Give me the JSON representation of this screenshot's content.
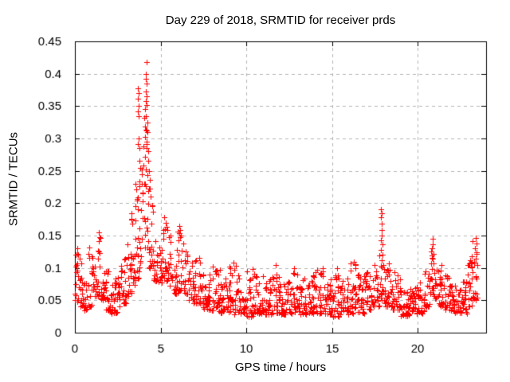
{
  "chart_data": {
    "type": "scatter",
    "title": "Day 229 of 2018, SRMTID for receiver prds",
    "xlabel": "GPS time / hours",
    "ylabel": "SRMTID / TECUs",
    "xlim": [
      0,
      24
    ],
    "ylim": [
      0,
      0.45
    ],
    "xticks": [
      0,
      5,
      10,
      15,
      20
    ],
    "xtick_labels": [
      "0",
      "5",
      "10",
      "15",
      "20"
    ],
    "yticks": [
      0,
      0.05,
      0.1,
      0.15,
      0.2,
      0.25,
      0.3,
      0.35,
      0.4,
      0.45
    ],
    "ytick_labels": [
      "0",
      "0.05",
      "0.1",
      "0.15",
      "0.2",
      "0.25",
      "0.3",
      "0.35",
      "0.4",
      "0.45"
    ],
    "grid": true,
    "legend": "none",
    "marker": "plus",
    "marker_color": "#ff0000",
    "grid_color": "#b5b5b5",
    "axis_color": "#000000",
    "background_color": "#ffffff",
    "data_x_end": 23.5,
    "peak_point": [
      4.17,
      0.418
    ],
    "band_segments": [
      [
        0.0,
        0.25,
        16,
        0.045,
        0.125
      ],
      [
        0.25,
        0.5,
        16,
        0.04,
        0.115
      ],
      [
        0.5,
        0.75,
        16,
        0.035,
        0.1
      ],
      [
        0.75,
        1.0,
        16,
        0.04,
        0.135
      ],
      [
        1.0,
        1.25,
        16,
        0.05,
        0.12
      ],
      [
        1.25,
        1.5,
        16,
        0.055,
        0.152
      ],
      [
        1.5,
        1.75,
        16,
        0.05,
        0.13
      ],
      [
        1.75,
        2.0,
        16,
        0.035,
        0.1
      ],
      [
        2.0,
        2.25,
        16,
        0.028,
        0.075
      ],
      [
        2.25,
        2.5,
        16,
        0.03,
        0.09
      ],
      [
        2.5,
        2.75,
        16,
        0.04,
        0.105
      ],
      [
        2.75,
        3.0,
        16,
        0.045,
        0.115
      ],
      [
        3.0,
        3.25,
        16,
        0.055,
        0.15
      ],
      [
        3.25,
        3.5,
        16,
        0.06,
        0.185
      ],
      [
        3.5,
        3.75,
        16,
        0.08,
        0.21
      ],
      [
        3.75,
        4.0,
        16,
        0.1,
        0.27
      ],
      [
        4.0,
        4.3,
        18,
        0.13,
        0.33
      ],
      [
        4.3,
        4.55,
        15,
        0.1,
        0.21
      ],
      [
        4.55,
        4.8,
        15,
        0.08,
        0.145
      ],
      [
        4.8,
        5.1,
        16,
        0.075,
        0.135
      ],
      [
        5.1,
        5.4,
        16,
        0.08,
        0.175
      ],
      [
        5.4,
        5.7,
        16,
        0.07,
        0.15
      ],
      [
        5.7,
        6.0,
        16,
        0.06,
        0.13
      ],
      [
        6.0,
        6.3,
        16,
        0.065,
        0.16
      ],
      [
        6.3,
        6.6,
        16,
        0.06,
        0.14
      ],
      [
        6.6,
        6.9,
        16,
        0.05,
        0.115
      ],
      [
        6.9,
        7.2,
        16,
        0.045,
        0.12
      ],
      [
        7.2,
        7.5,
        16,
        0.04,
        0.1
      ],
      [
        7.5,
        8.0,
        30,
        0.035,
        0.095
      ],
      [
        8.0,
        8.5,
        30,
        0.03,
        0.105
      ],
      [
        8.5,
        9.0,
        30,
        0.03,
        0.085
      ],
      [
        9.0,
        9.5,
        30,
        0.028,
        0.11
      ],
      [
        9.5,
        10.0,
        30,
        0.03,
        0.09
      ],
      [
        10.0,
        10.5,
        30,
        0.025,
        0.105
      ],
      [
        10.5,
        11.0,
        30,
        0.03,
        0.09
      ],
      [
        11.0,
        11.5,
        30,
        0.028,
        0.085
      ],
      [
        11.5,
        12.0,
        30,
        0.03,
        0.105
      ],
      [
        12.0,
        12.5,
        30,
        0.028,
        0.08
      ],
      [
        12.5,
        13.0,
        30,
        0.03,
        0.1
      ],
      [
        13.0,
        13.5,
        30,
        0.028,
        0.085
      ],
      [
        13.5,
        14.0,
        30,
        0.03,
        0.09
      ],
      [
        14.0,
        14.5,
        30,
        0.03,
        0.1
      ],
      [
        14.5,
        15.0,
        30,
        0.028,
        0.09
      ],
      [
        15.0,
        15.5,
        30,
        0.025,
        0.1
      ],
      [
        15.5,
        16.0,
        30,
        0.028,
        0.085
      ],
      [
        16.0,
        16.5,
        30,
        0.03,
        0.11
      ],
      [
        16.5,
        17.0,
        30,
        0.03,
        0.09
      ],
      [
        17.0,
        17.4,
        24,
        0.035,
        0.1
      ],
      [
        17.4,
        17.8,
        24,
        0.04,
        0.12
      ],
      [
        17.8,
        18.1,
        18,
        0.05,
        0.13
      ],
      [
        18.1,
        18.5,
        24,
        0.04,
        0.11
      ],
      [
        18.5,
        19.0,
        30,
        0.035,
        0.095
      ],
      [
        19.0,
        19.5,
        30,
        0.025,
        0.07
      ],
      [
        19.5,
        20.0,
        30,
        0.03,
        0.08
      ],
      [
        20.0,
        20.4,
        24,
        0.03,
        0.085
      ],
      [
        20.4,
        20.75,
        21,
        0.04,
        0.1
      ],
      [
        20.75,
        21.1,
        21,
        0.05,
        0.14
      ],
      [
        21.1,
        21.5,
        24,
        0.04,
        0.105
      ],
      [
        21.5,
        22.0,
        30,
        0.035,
        0.09
      ],
      [
        22.0,
        22.5,
        30,
        0.03,
        0.075
      ],
      [
        22.5,
        22.9,
        24,
        0.03,
        0.08
      ],
      [
        22.9,
        23.2,
        18,
        0.04,
        0.11
      ],
      [
        23.2,
        23.5,
        18,
        0.05,
        0.148
      ]
    ],
    "outlier_points": [
      [
        0.12,
        0.13
      ],
      [
        0.16,
        0.122
      ],
      [
        1.38,
        0.155
      ],
      [
        1.42,
        0.148
      ],
      [
        1.4,
        0.141
      ],
      [
        3.28,
        0.176
      ],
      [
        3.3,
        0.185
      ],
      [
        3.33,
        0.168
      ],
      [
        3.52,
        0.196
      ],
      [
        3.55,
        0.23
      ],
      [
        3.58,
        0.221
      ],
      [
        3.61,
        0.206
      ],
      [
        3.66,
        0.342
      ],
      [
        3.68,
        0.378
      ],
      [
        3.68,
        0.292
      ],
      [
        3.69,
        0.362
      ],
      [
        3.7,
        0.37
      ],
      [
        3.71,
        0.335
      ],
      [
        3.72,
        0.35
      ],
      [
        3.74,
        0.3
      ],
      [
        3.76,
        0.285
      ],
      [
        3.78,
        0.265
      ],
      [
        3.8,
        0.255
      ],
      [
        3.9,
        0.245
      ],
      [
        3.95,
        0.217
      ],
      [
        3.98,
        0.258
      ],
      [
        4.02,
        0.288
      ],
      [
        4.05,
        0.332
      ],
      [
        4.07,
        0.302
      ],
      [
        4.08,
        0.23
      ],
      [
        4.08,
        0.318
      ],
      [
        4.1,
        0.345
      ],
      [
        4.11,
        0.272
      ],
      [
        4.12,
        0.358
      ],
      [
        4.13,
        0.335
      ],
      [
        4.14,
        0.372
      ],
      [
        4.15,
        0.392
      ],
      [
        4.16,
        0.4
      ],
      [
        4.17,
        0.418
      ],
      [
        4.17,
        0.365
      ],
      [
        4.18,
        0.385
      ],
      [
        4.19,
        0.352
      ],
      [
        4.2,
        0.295
      ],
      [
        4.21,
        0.243
      ],
      [
        4.22,
        0.325
      ],
      [
        4.24,
        0.31
      ],
      [
        4.26,
        0.28
      ],
      [
        4.29,
        0.265
      ],
      [
        4.31,
        0.25
      ],
      [
        4.33,
        0.222
      ],
      [
        4.35,
        0.236
      ],
      [
        4.38,
        0.223
      ],
      [
        4.42,
        0.21
      ],
      [
        5.18,
        0.158
      ],
      [
        5.22,
        0.178
      ],
      [
        5.28,
        0.17
      ],
      [
        5.33,
        0.164
      ],
      [
        6.05,
        0.143
      ],
      [
        6.1,
        0.165
      ],
      [
        6.15,
        0.158
      ],
      [
        6.2,
        0.15
      ],
      [
        7.25,
        0.115
      ],
      [
        7.3,
        0.108
      ],
      [
        9.25,
        0.108
      ],
      [
        12.8,
        0.1
      ],
      [
        14.45,
        0.1
      ],
      [
        15.3,
        0.1
      ],
      [
        16.3,
        0.11
      ],
      [
        16.35,
        0.104
      ],
      [
        17.86,
        0.128
      ],
      [
        17.87,
        0.178
      ],
      [
        17.88,
        0.19
      ],
      [
        17.88,
        0.143
      ],
      [
        17.89,
        0.158
      ],
      [
        17.9,
        0.184
      ],
      [
        17.9,
        0.112
      ],
      [
        17.91,
        0.168
      ],
      [
        17.92,
        0.15
      ],
      [
        17.94,
        0.136
      ],
      [
        17.96,
        0.12
      ],
      [
        18.0,
        0.105
      ],
      [
        20.86,
        0.13
      ],
      [
        20.88,
        0.145
      ],
      [
        20.89,
        0.114
      ],
      [
        20.9,
        0.137
      ],
      [
        20.92,
        0.122
      ],
      [
        20.94,
        0.107
      ],
      [
        22.95,
        0.105
      ],
      [
        23.05,
        0.112
      ],
      [
        23.15,
        0.118
      ],
      [
        23.3,
        0.107
      ],
      [
        23.35,
        0.13
      ],
      [
        23.38,
        0.146
      ],
      [
        23.4,
        0.114
      ],
      [
        23.42,
        0.138
      ],
      [
        23.44,
        0.122
      ]
    ]
  }
}
